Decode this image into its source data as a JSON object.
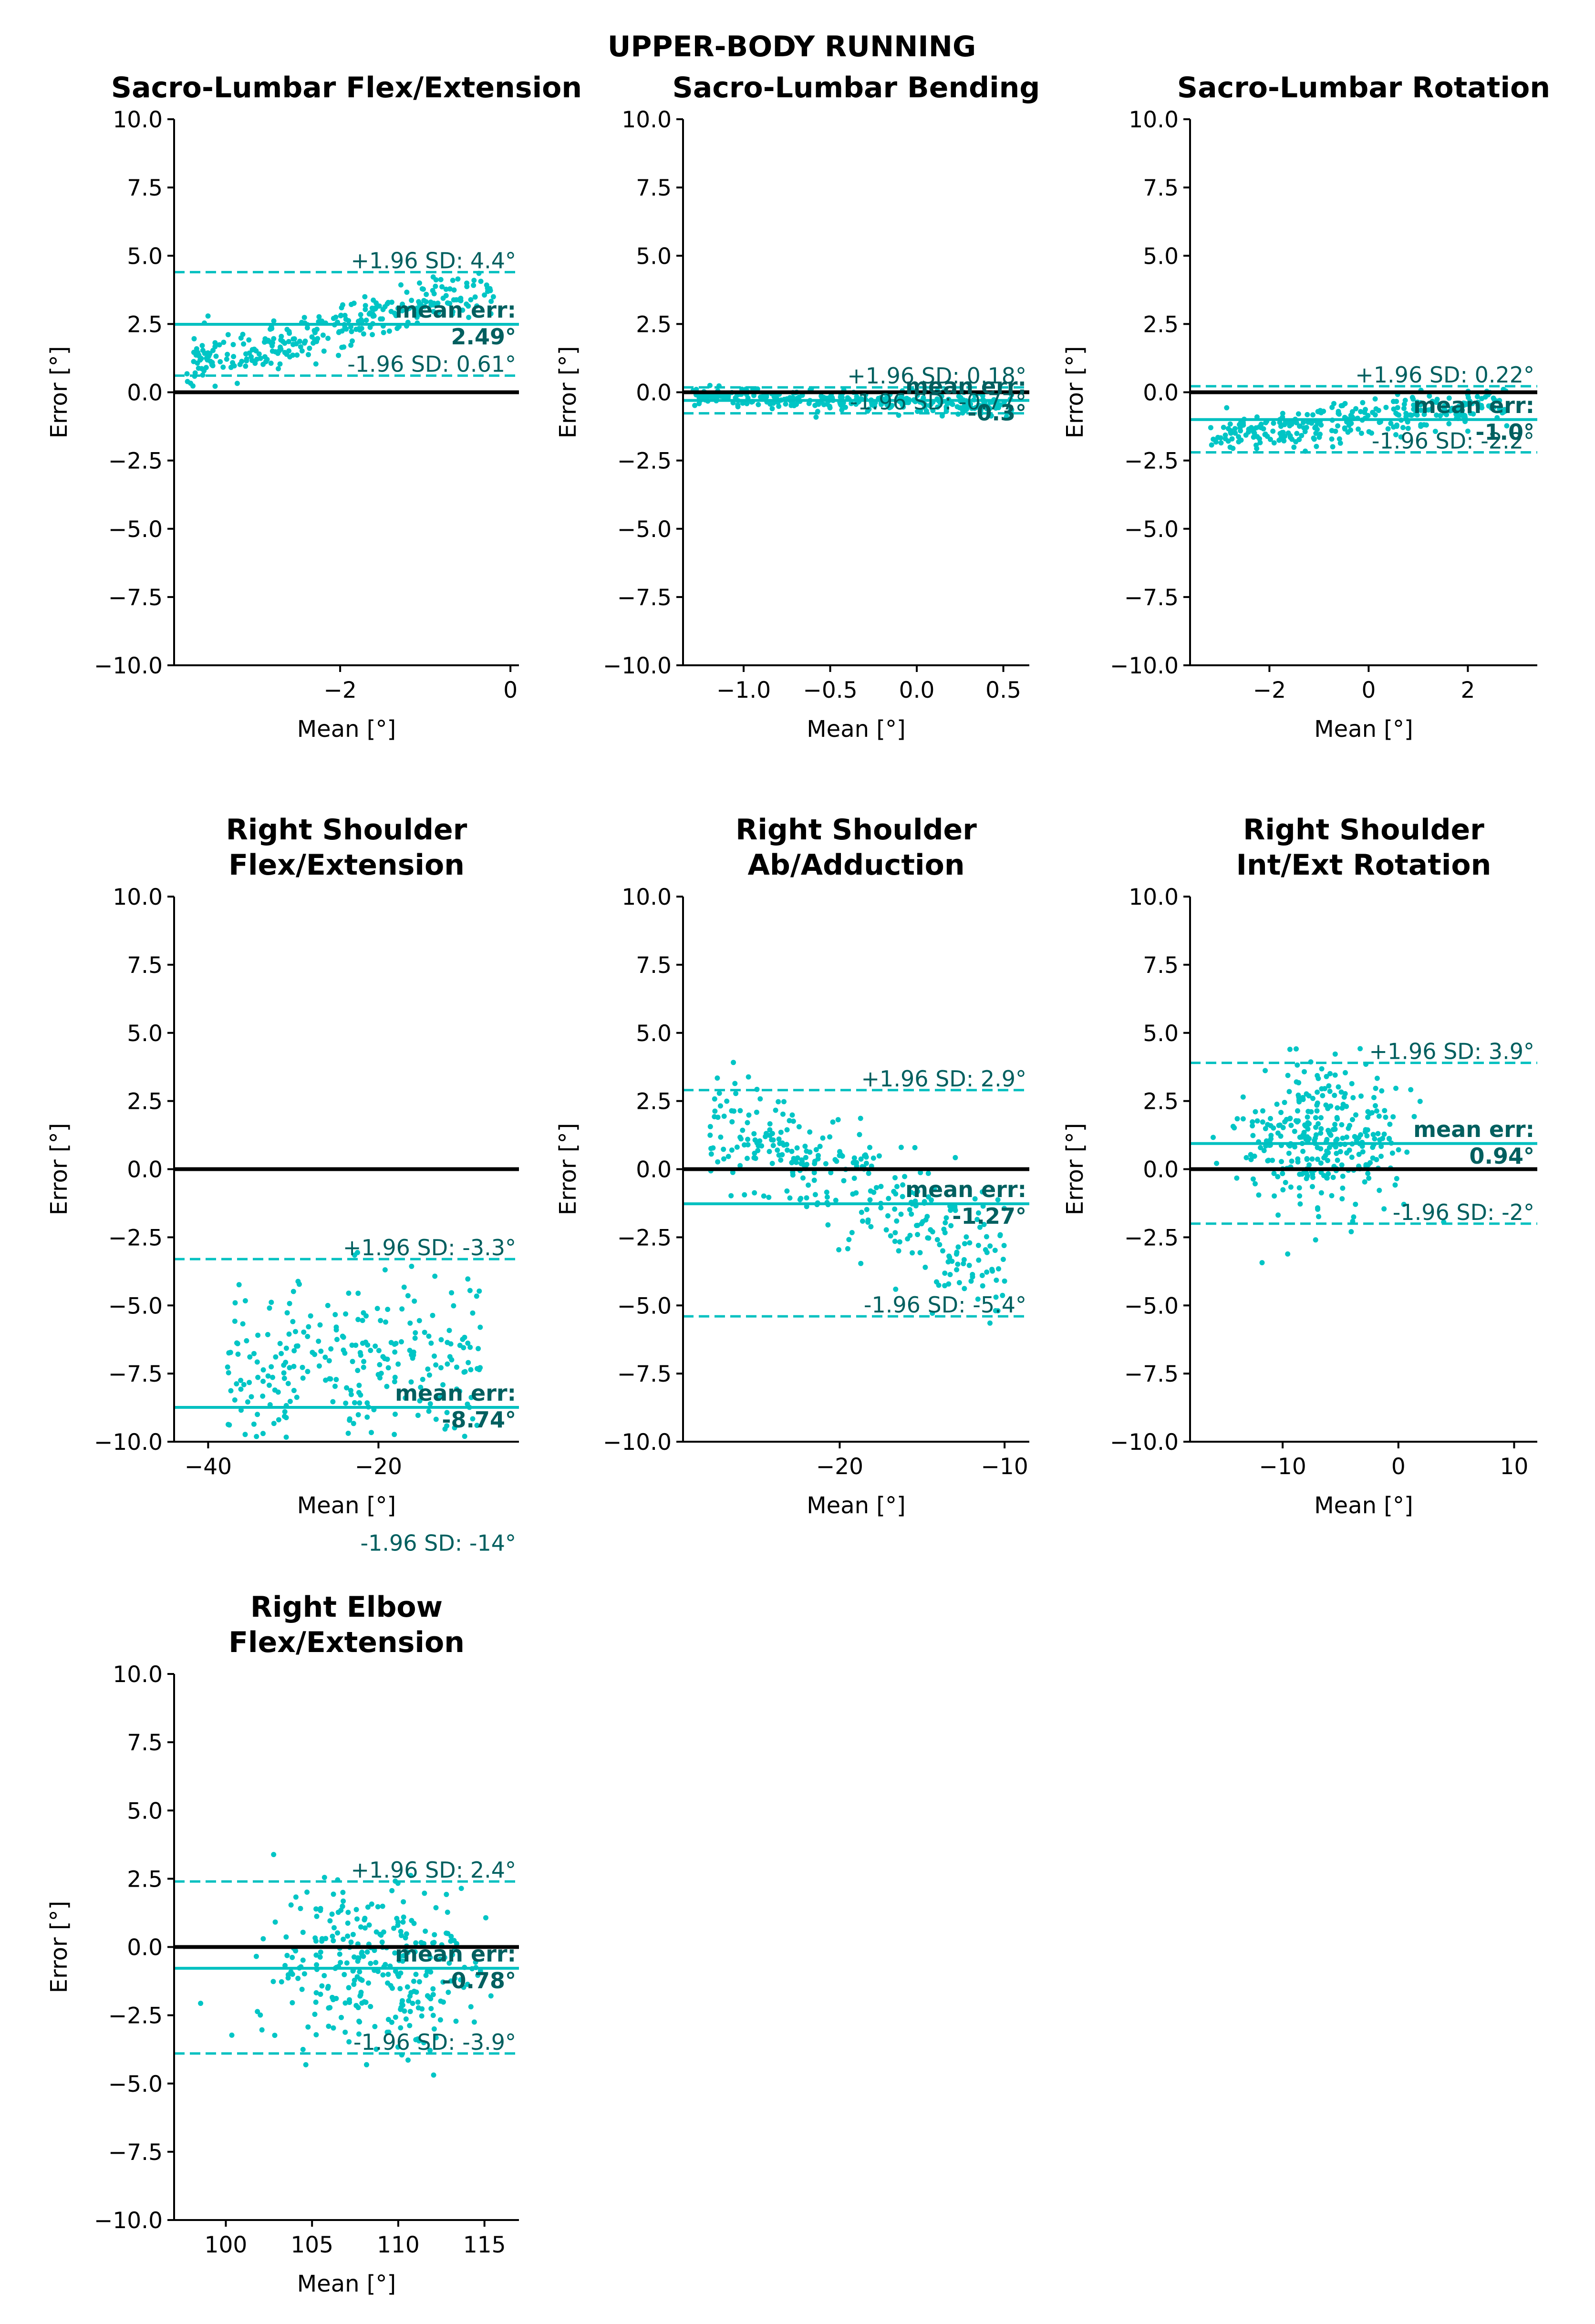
{
  "figure": {
    "suptitle": "UPPER-BODY RUNNING",
    "colors": {
      "points": "#00c5c5",
      "lines": "#00c0c0",
      "annotation": "#005f5f",
      "zero_line": "#000000"
    }
  },
  "chart_data": [
    {
      "type": "scatter",
      "title_lines": [
        "Sacro-Lumbar Flex/Extension"
      ],
      "xlabel": "Mean [°]",
      "ylabel": "Error [°]",
      "xlim": [
        -3.95,
        0.1
      ],
      "ylim": [
        -10,
        10
      ],
      "xticks": [
        -2,
        0
      ],
      "xtick_labels": [
        "−2",
        "0"
      ],
      "yticks": [
        10,
        7.5,
        5,
        2.5,
        0,
        -2.5,
        -5,
        -7.5,
        -10
      ],
      "ytick_labels": [
        "10.0",
        "7.5",
        "5.0",
        "2.5",
        "0.0",
        "−2.5",
        "−5.0",
        "−7.5",
        "−10.0"
      ],
      "mean_err": 2.49,
      "upper_loa": 4.4,
      "lower_loa": 0.61,
      "mean_label": "mean err:",
      "mean_value_label": "2.49°",
      "upper_label": "+1.96 SD: 4.4°",
      "lower_label": "-1.96 SD: 0.61°",
      "scatter": {
        "n": 300,
        "x_range": [
          -3.8,
          -0.2
        ],
        "y_at_xmin": 1.0,
        "y_at_xmax": 3.8,
        "spread": 0.45,
        "seed": 11
      }
    },
    {
      "type": "scatter",
      "title_lines": [
        "Sacro-Lumbar Bending"
      ],
      "xlabel": "Mean [°]",
      "ylabel": "Error [°]",
      "xlim": [
        -1.35,
        0.65
      ],
      "ylim": [
        -10,
        10
      ],
      "xticks": [
        -1.0,
        -0.5,
        0.0,
        0.5
      ],
      "xtick_labels": [
        "−1.0",
        "−0.5",
        "0.0",
        "0.5"
      ],
      "yticks": [
        10,
        7.5,
        5,
        2.5,
        0,
        -2.5,
        -5,
        -7.5,
        -10
      ],
      "ytick_labels": [
        "10.0",
        "7.5",
        "5.0",
        "2.5",
        "0.0",
        "−2.5",
        "−5.0",
        "−7.5",
        "−10.0"
      ],
      "mean_err": -0.3,
      "upper_loa": 0.18,
      "lower_loa": -0.77,
      "mean_label": "mean err:",
      "mean_value_label": "-0.3°",
      "upper_label": "+1.96 SD: 0.18°",
      "lower_label": "-1.96 SD: -0.77°",
      "scatter": {
        "n": 300,
        "x_range": [
          -1.3,
          0.55
        ],
        "y_at_xmin": -0.1,
        "y_at_xmax": -0.5,
        "spread": 0.18,
        "seed": 23
      }
    },
    {
      "type": "scatter",
      "title_lines": [
        "Sacro-Lumbar Rotation"
      ],
      "xlabel": "Mean [°]",
      "ylabel": "Error [°]",
      "xlim": [
        -3.6,
        3.4
      ],
      "ylim": [
        -10,
        10
      ],
      "xticks": [
        -2,
        0,
        2
      ],
      "xtick_labels": [
        "−2",
        "0",
        "2"
      ],
      "yticks": [
        10,
        7.5,
        5,
        2.5,
        0,
        -2.5,
        -5,
        -7.5,
        -10
      ],
      "ytick_labels": [
        "10.0",
        "7.5",
        "5.0",
        "2.5",
        "0.0",
        "−2.5",
        "−5.0",
        "−7.5",
        "−10.0"
      ],
      "mean_err": -1.0,
      "upper_loa": 0.22,
      "lower_loa": -2.2,
      "mean_label": "mean err:",
      "mean_value_label": "-1.0°",
      "upper_label": "+1.96 SD: 0.22°",
      "lower_label": "-1.96 SD: -2.2°",
      "scatter": {
        "n": 300,
        "x_range": [
          -3.2,
          2.8
        ],
        "y_at_xmin": -1.7,
        "y_at_xmax": -0.4,
        "spread": 0.35,
        "seed": 37
      }
    },
    {
      "type": "scatter",
      "title_lines": [
        "Right Shoulder",
        "Flex/Extension"
      ],
      "xlabel": "Mean [°]",
      "ylabel": "Error [°]",
      "xlim": [
        -44,
        -3.5
      ],
      "ylim": [
        -10,
        10
      ],
      "xticks": [
        -40,
        -20
      ],
      "xtick_labels": [
        "−40",
        "−20"
      ],
      "yticks": [
        10,
        7.5,
        5,
        2.5,
        0,
        -2.5,
        -5,
        -7.5,
        -10
      ],
      "ytick_labels": [
        "10.0",
        "7.5",
        "5.0",
        "2.5",
        "0.0",
        "−2.5",
        "−5.0",
        "−7.5",
        "−10.0"
      ],
      "mean_err": -8.74,
      "upper_loa": -3.3,
      "lower_loa": -14,
      "mean_label": "mean err:",
      "mean_value_label": "-8.74°",
      "upper_label": "+1.96 SD: -3.3°",
      "lower_label": "-1.96 SD: -14°",
      "scatter": {
        "n": 260,
        "x_range": [
          -38,
          -8
        ],
        "y_at_xmin": -7.5,
        "y_at_xmax": -7.0,
        "spread": 1.6,
        "seed": 41
      }
    },
    {
      "type": "scatter",
      "title_lines": [
        "Right Shoulder",
        "Ab/Adduction"
      ],
      "xlabel": "Mean [°]",
      "ylabel": "Error [°]",
      "xlim": [
        -29.5,
        -8.5
      ],
      "ylim": [
        -10,
        10
      ],
      "xticks": [
        -20,
        -10
      ],
      "xtick_labels": [
        "−20",
        "−10"
      ],
      "yticks": [
        10,
        7.5,
        5,
        2.5,
        0,
        -2.5,
        -5,
        -7.5,
        -10
      ],
      "ytick_labels": [
        "10.0",
        "7.5",
        "5.0",
        "2.5",
        "0.0",
        "−2.5",
        "−5.0",
        "−7.5",
        "−10.0"
      ],
      "mean_err": -1.27,
      "upper_loa": 2.9,
      "lower_loa": -5.4,
      "mean_label": "mean err:",
      "mean_value_label": "-1.27°",
      "upper_label": "+1.96 SD: 2.9°",
      "lower_label": "-1.96 SD: -5.4°",
      "scatter": {
        "n": 320,
        "x_range": [
          -28,
          -10
        ],
        "y_at_xmin": 2.0,
        "y_at_xmax": -3.5,
        "spread": 1.1,
        "seed": 53
      }
    },
    {
      "type": "scatter",
      "title_lines": [
        "Right Shoulder",
        "Int/Ext Rotation"
      ],
      "xlabel": "Mean [°]",
      "ylabel": "Error [°]",
      "xlim": [
        -18,
        12
      ],
      "ylim": [
        -10,
        10
      ],
      "xticks": [
        -10,
        0,
        10
      ],
      "xtick_labels": [
        "−10",
        "0",
        "10"
      ],
      "yticks": [
        10,
        7.5,
        5,
        2.5,
        0,
        -2.5,
        -5,
        -7.5,
        -10
      ],
      "ytick_labels": [
        "10.0",
        "7.5",
        "5.0",
        "2.5",
        "0.0",
        "−2.5",
        "−5.0",
        "−7.5",
        "−10.0"
      ],
      "mean_err": 0.94,
      "upper_loa": 3.9,
      "lower_loa": -2.0,
      "mean_label": "mean err:",
      "mean_value_label": "0.94°",
      "upper_label": "+1.96 SD: 3.9°",
      "lower_label": "-1.96 SD: -2°",
      "scatter": {
        "n": 320,
        "x_range": [
          -16,
          9
        ],
        "y_at_xmin": 1.0,
        "y_at_xmax": 0.8,
        "spread": 1.3,
        "seed": 67,
        "x_center": -7,
        "x_sd": 3.2
      }
    },
    {
      "type": "scatter",
      "title_lines": [
        "Right Elbow",
        "Flex/Extension"
      ],
      "xlabel": "Mean [°]",
      "ylabel": "Error [°]",
      "xlim": [
        97,
        117
      ],
      "ylim": [
        -10,
        10
      ],
      "xticks": [
        100,
        105,
        110,
        115
      ],
      "xtick_labels": [
        "100",
        "105",
        "110",
        "115"
      ],
      "yticks": [
        10,
        7.5,
        5,
        2.5,
        0,
        -2.5,
        -5,
        -7.5,
        -10
      ],
      "ytick_labels": [
        "10.0",
        "7.5",
        "5.0",
        "2.5",
        "0.0",
        "−2.5",
        "−5.0",
        "−7.5",
        "−10.0"
      ],
      "mean_err": -0.78,
      "upper_loa": 2.4,
      "lower_loa": -3.9,
      "mean_label": "mean err:",
      "mean_value_label": "-0.78°",
      "upper_label": "+1.96 SD: 2.4°",
      "lower_label": "-1.96 SD: -3.9°",
      "scatter": {
        "n": 300,
        "x_range": [
          98,
          116
        ],
        "y_at_xmin": -0.5,
        "y_at_xmax": -0.8,
        "spread": 1.5,
        "seed": 79,
        "x_center": 108.5,
        "x_sd": 3.2
      }
    }
  ]
}
